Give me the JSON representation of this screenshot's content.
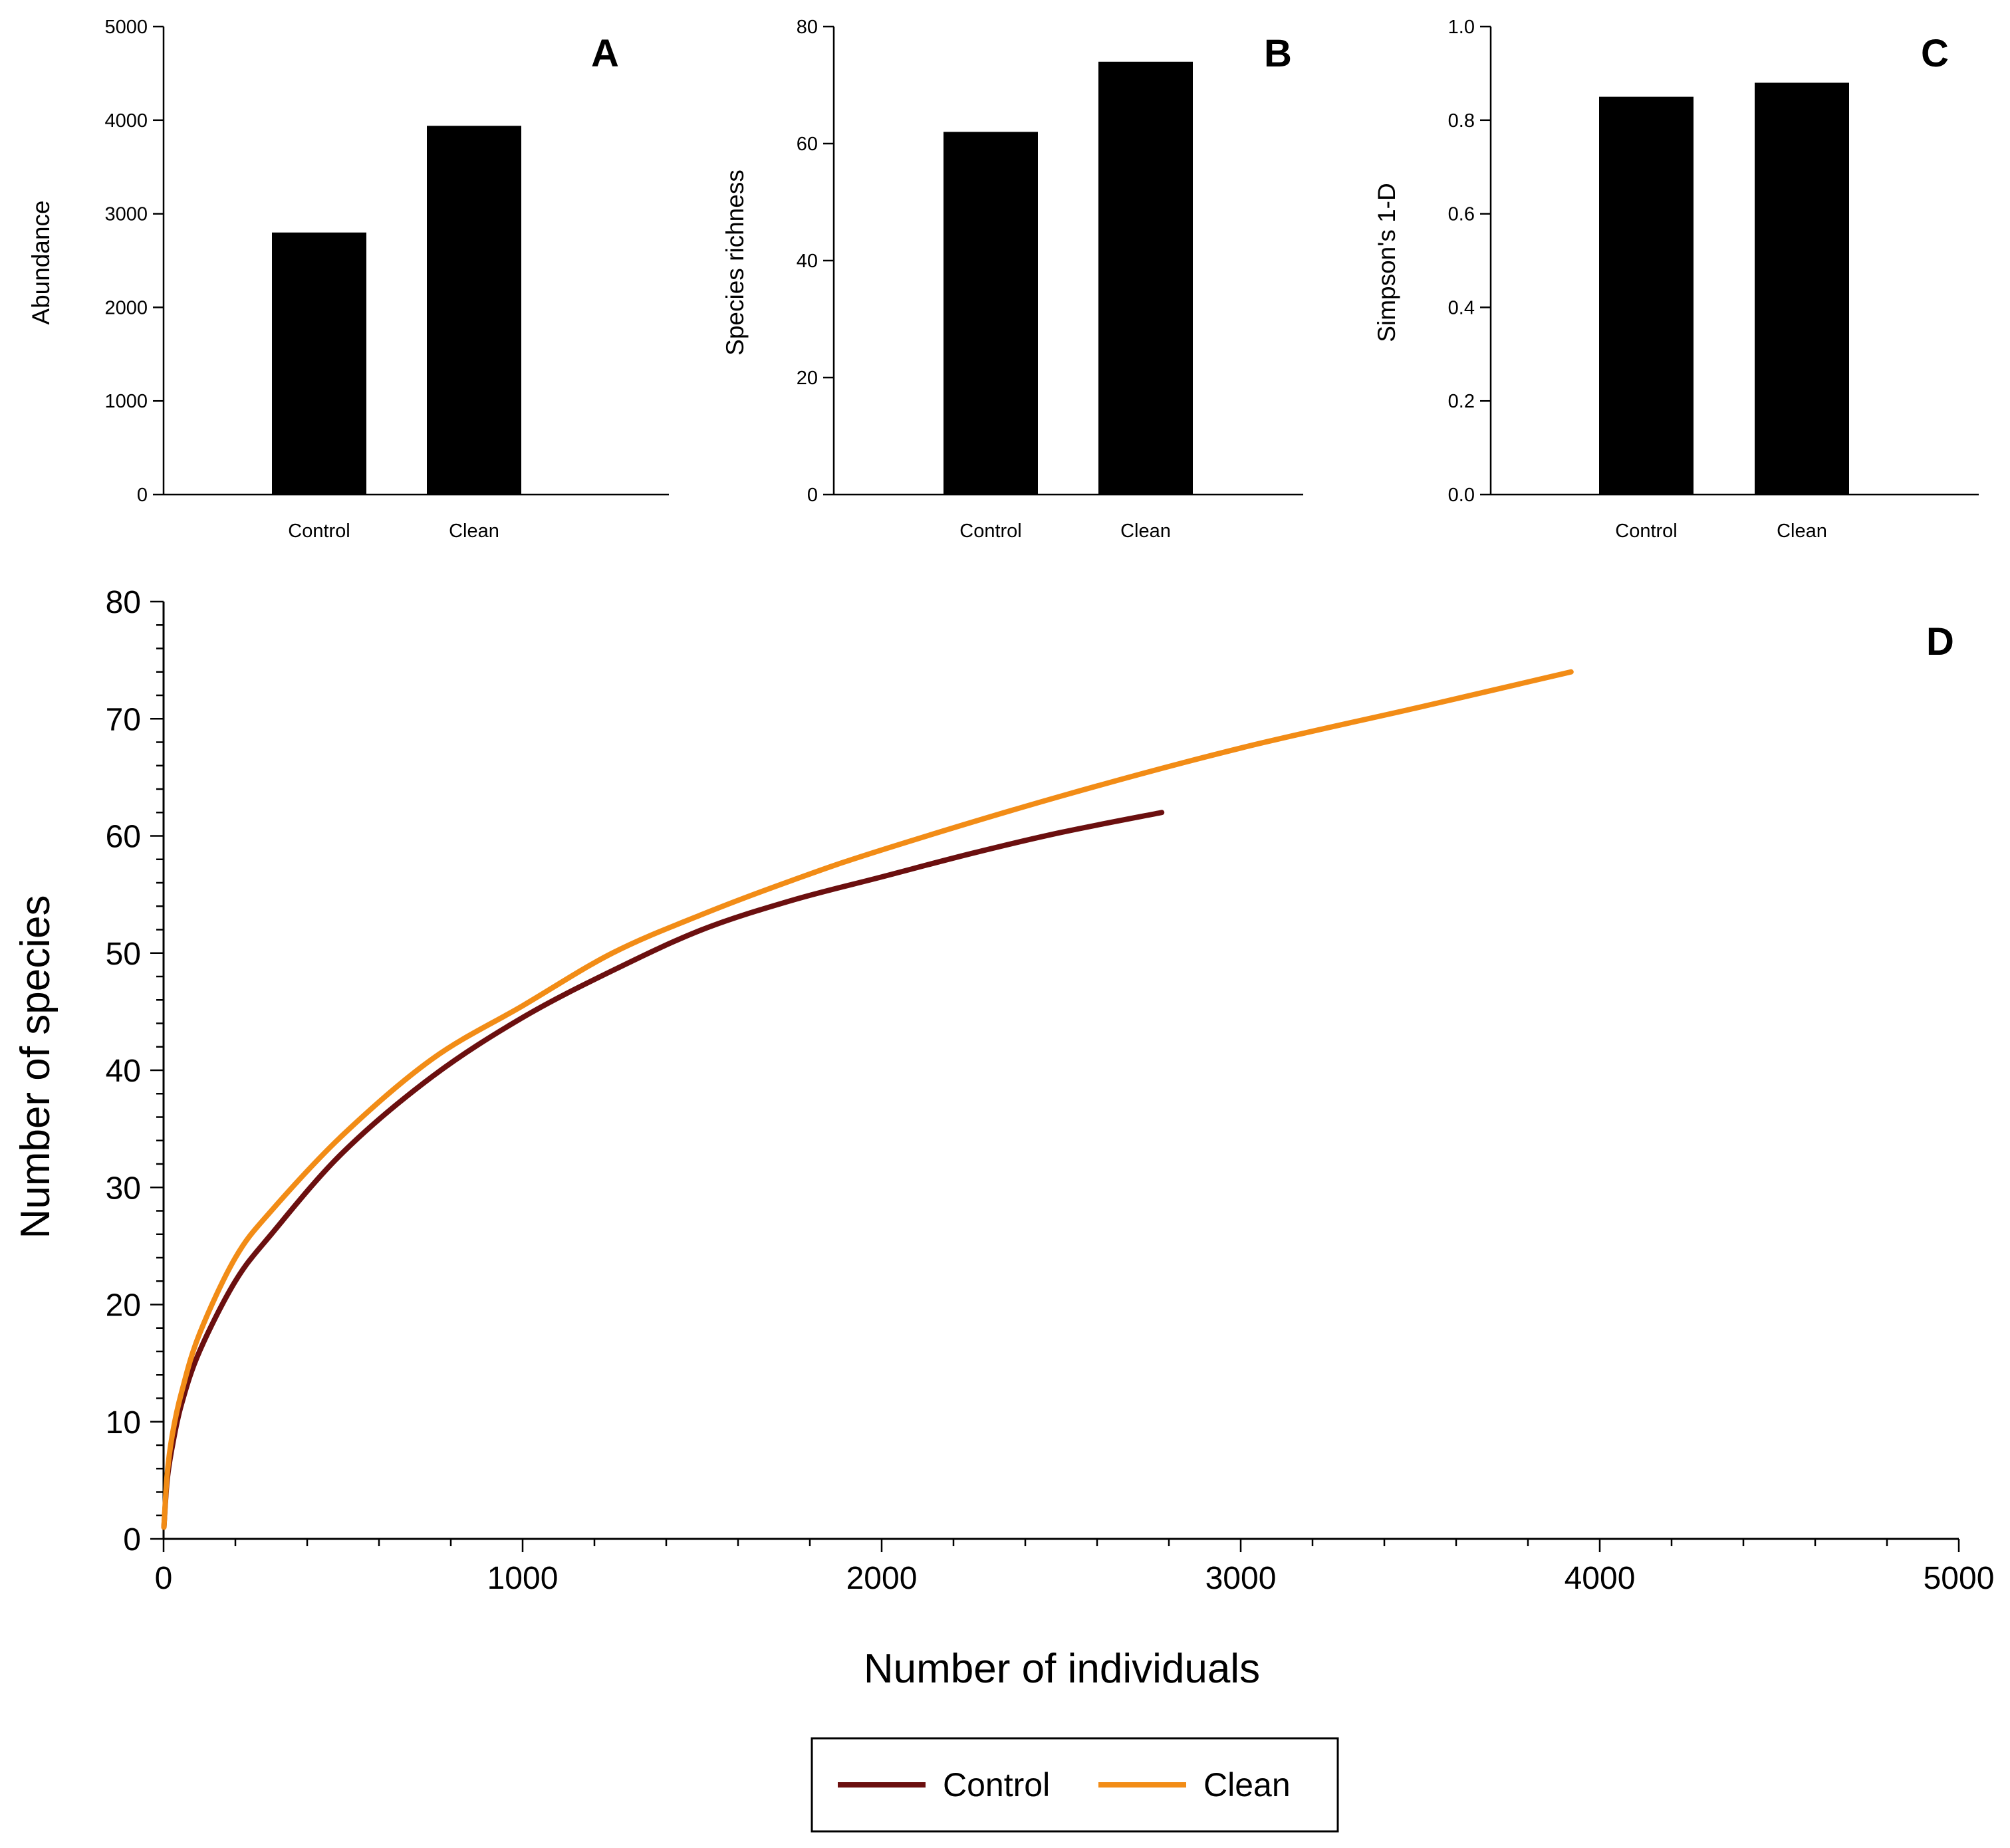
{
  "chart_data": [
    {
      "id": "A",
      "type": "bar",
      "panel_label": "A",
      "categories": [
        "Control",
        "Clean"
      ],
      "values": [
        2800,
        3940
      ],
      "ylabel": "Abundance",
      "xlabel": "",
      "ylim": [
        0,
        5000
      ],
      "yticks": [
        0,
        1000,
        2000,
        3000,
        4000,
        5000
      ],
      "ytick_labels": [
        "0",
        "1000",
        "2000",
        "3000",
        "4000",
        "5000"
      ],
      "bar_color": "#000000"
    },
    {
      "id": "B",
      "type": "bar",
      "panel_label": "B",
      "categories": [
        "Control",
        "Clean"
      ],
      "values": [
        62,
        74
      ],
      "ylabel": "Species richness",
      "xlabel": "",
      "ylim": [
        0,
        80
      ],
      "yticks": [
        0,
        20,
        40,
        60,
        80
      ],
      "ytick_labels": [
        "0",
        "20",
        "40",
        "60",
        "80"
      ],
      "bar_color": "#000000"
    },
    {
      "id": "C",
      "type": "bar",
      "panel_label": "C",
      "categories": [
        "Control",
        "Clean"
      ],
      "values": [
        0.85,
        0.88
      ],
      "ylabel": "Simpson's 1-D",
      "xlabel": "",
      "ylim": [
        0,
        1.0
      ],
      "yticks": [
        0,
        0.2,
        0.4,
        0.6,
        0.8,
        1.0
      ],
      "ytick_labels": [
        "0.0",
        "0.2",
        "0.4",
        "0.6",
        "0.8",
        "1.0"
      ],
      "bar_color": "#000000"
    },
    {
      "id": "D",
      "type": "line",
      "panel_label": "D",
      "xlabel": "Number of individuals",
      "ylabel": "Number of species",
      "xlim": [
        0,
        5000
      ],
      "ylim": [
        0,
        80
      ],
      "xticks": [
        0,
        1000,
        2000,
        3000,
        4000,
        5000
      ],
      "xtick_labels": [
        "0",
        "1000",
        "2000",
        "3000",
        "4000",
        "5000"
      ],
      "yticks": [
        0,
        10,
        20,
        30,
        40,
        50,
        60,
        70,
        80
      ],
      "ytick_labels": [
        "0",
        "10",
        "20",
        "30",
        "40",
        "50",
        "60",
        "70",
        "80"
      ],
      "legend_position": "bottom-center",
      "series": [
        {
          "name": "Control",
          "color": "#6b0f0f",
          "x": [
            1,
            10,
            25,
            50,
            100,
            200,
            300,
            500,
            750,
            1000,
            1250,
            1500,
            1750,
            2000,
            2250,
            2500,
            2780
          ],
          "y": [
            1,
            5,
            8,
            11.5,
            16,
            22,
            26,
            33,
            39.5,
            44.5,
            48.5,
            52,
            54.5,
            56.5,
            58.5,
            60.3,
            62
          ]
        },
        {
          "name": "Clean",
          "color": "#f28c16",
          "x": [
            1,
            10,
            25,
            50,
            100,
            200,
            300,
            500,
            750,
            1000,
            1250,
            1500,
            1750,
            2000,
            2500,
            3000,
            3500,
            3920
          ],
          "y": [
            1,
            5.5,
            9,
            12.5,
            17.5,
            24,
            28,
            34.5,
            41,
            45.5,
            50,
            53.3,
            56.2,
            58.8,
            63.4,
            67.5,
            71,
            74
          ]
        }
      ]
    }
  ]
}
